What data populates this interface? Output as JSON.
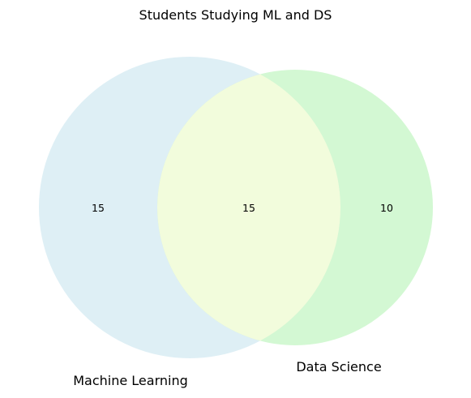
{
  "title": "Students Studying ML and DS",
  "sets": [
    {
      "label": "Machine Learning",
      "only_count": "15",
      "color": "#ADD8E6"
    },
    {
      "label": "Data Science",
      "only_count": "10",
      "color": "#90EE90"
    }
  ],
  "intersection": {
    "count": "15",
    "color": "#FFFFE0"
  }
}
